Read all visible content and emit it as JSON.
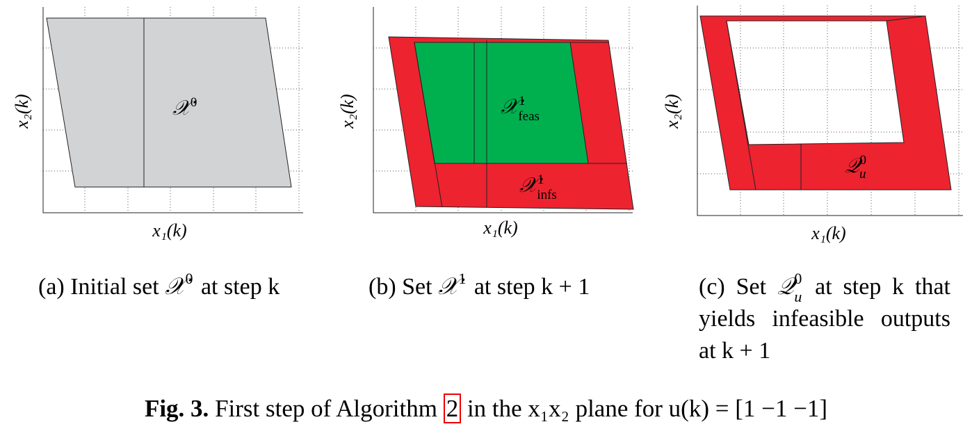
{
  "panels": [
    {
      "x_label": "x₁(k)",
      "y_label": "x₂(k)",
      "regions": [
        {
          "symbol": "𝒳",
          "sup": "0",
          "sub": ""
        }
      ],
      "caption": {
        "before": "(a) Initial set",
        "symbol": "𝒳",
        "sup": "0",
        "sub": "",
        "after": "at step k"
      }
    },
    {
      "x_label": "x₁(k)",
      "y_label": "x₂(k)",
      "regions": [
        {
          "symbol": "𝒳",
          "sup": "1",
          "sub": "feas"
        },
        {
          "symbol": "𝒳",
          "sup": "1",
          "sub": "infs"
        }
      ],
      "caption": {
        "before": "(b) Set",
        "symbol": "𝒳",
        "sup": "1",
        "sub": "",
        "after": "at step k + 1"
      }
    },
    {
      "x_label": "x₁(k)",
      "y_label": "x₂(k)",
      "regions": [
        {
          "symbol": "𝒬",
          "sup": "0",
          "sub": "u"
        }
      ],
      "caption": {
        "before": "(c) Set",
        "symbol": "𝒬",
        "sup": "0",
        "sub": "u",
        "after": "at step k that yields infeasible outputs at k + 1"
      }
    }
  ],
  "figure_caption": {
    "label": "Fig. 3.",
    "before": "First step of Algorithm",
    "ref": "2",
    "after": "in the x₁x₂ plane for u(k) = [1  −1  −1]"
  }
}
